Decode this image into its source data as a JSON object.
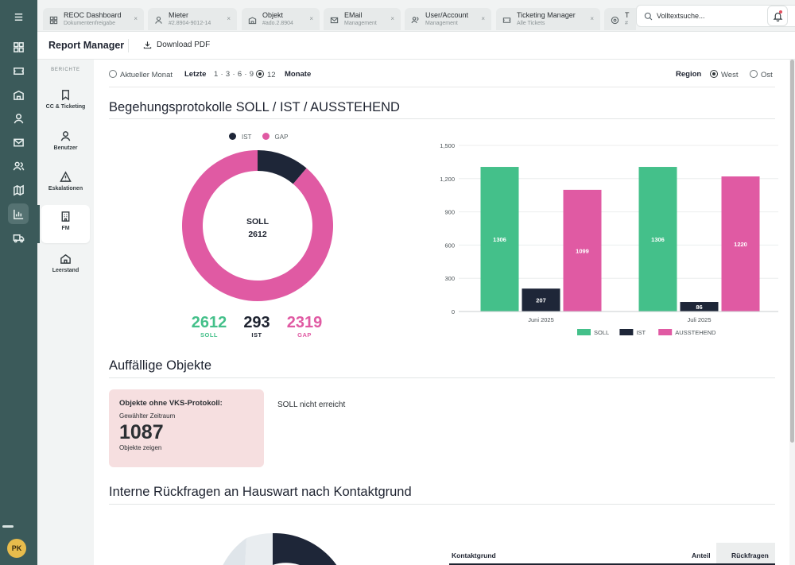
{
  "topbar": {
    "tabs": [
      {
        "icon": "dashboard-icon",
        "title": "REOC Dashboard",
        "subtitle": "Dokumentenfreigabe"
      },
      {
        "icon": "user-icon",
        "title": "Mieter",
        "subtitle": "#2.8904-9012-14"
      },
      {
        "icon": "building-icon",
        "title": "Objekt",
        "subtitle": "#ado.2.8904"
      },
      {
        "icon": "mail-icon",
        "title": "EMail",
        "subtitle": "Management"
      },
      {
        "icon": "users-icon",
        "title": "User/Account",
        "subtitle": "Management"
      },
      {
        "icon": "ticket-icon",
        "title": "Ticketing Manager",
        "subtitle": "Alle Tickets"
      },
      {
        "icon": "circle-icon",
        "title": "T",
        "subtitle": "#"
      }
    ],
    "close_glyph": "×",
    "search_placeholder": "Volltextsuche..."
  },
  "rail": {
    "avatar": "PK"
  },
  "header": {
    "title": "Report Manager",
    "download": "Download PDF"
  },
  "sidebar": {
    "caption": "BERICHTE",
    "items": [
      {
        "icon": "bookmark-icon",
        "label": "CC & Ticketing"
      },
      {
        "icon": "user-icon",
        "label": "Benutzer"
      },
      {
        "icon": "warning-icon",
        "label": "Eskalationen"
      },
      {
        "icon": "building-icon",
        "label": "FM"
      },
      {
        "icon": "home-icon",
        "label": "Leerstand"
      }
    ]
  },
  "filters": {
    "current_month": "Aktueller Monat",
    "last": "Letzte",
    "options": "1 · 3 · 6 · 9",
    "selected": "12",
    "months": "Monate",
    "region_label": "Region",
    "west": "West",
    "east": "Ost"
  },
  "sections": {
    "protocols": "Begehungsprotokolle SOLL / IST / AUSSTEHEND",
    "objects": "Auffällige Objekte",
    "inquiries": "Interne Rückfragen an Hauswart nach Kontaktgrund"
  },
  "donut": {
    "legend_ist": "IST",
    "legend_gap": "GAP",
    "center_label": "SOLL",
    "center_value": "2612",
    "ist": 293,
    "gap": 2319,
    "colors": {
      "ist": "#1e2638",
      "gap": "#e05aa3"
    }
  },
  "kpis": [
    {
      "value": "2612",
      "label": "SOLL",
      "color": "#44c08a"
    },
    {
      "value": "293",
      "label": "IST",
      "color": "#1e2330"
    },
    {
      "value": "2319",
      "label": "GAP",
      "color": "#e05aa3"
    }
  ],
  "chart_data": {
    "type": "bar",
    "categories": [
      "Juni 2025",
      "Juli 2025"
    ],
    "series": [
      {
        "name": "SOLL",
        "values": [
          1306,
          1306
        ],
        "color": "#44c08a"
      },
      {
        "name": "IST",
        "values": [
          207,
          86
        ],
        "color": "#1e2638"
      },
      {
        "name": "AUSSTEHEND",
        "values": [
          1099,
          1220
        ],
        "color": "#e05aa3"
      }
    ],
    "yticks": [
      "0",
      "300",
      "600",
      "900",
      "1,200",
      "1,500"
    ],
    "ylim": [
      0,
      1500
    ],
    "grid": true,
    "legend": "bottom-center"
  },
  "objects": {
    "card_title": "Objekte ohne VKS-Protokoll:",
    "period": "Gewählter Zeitraum",
    "count": "1087",
    "link": "Objekte zeigen",
    "note": "SOLL nicht erreicht"
  },
  "table": {
    "col1": "Kontaktgrund",
    "col2": "Anteil",
    "col3": "Rückfragen"
  }
}
